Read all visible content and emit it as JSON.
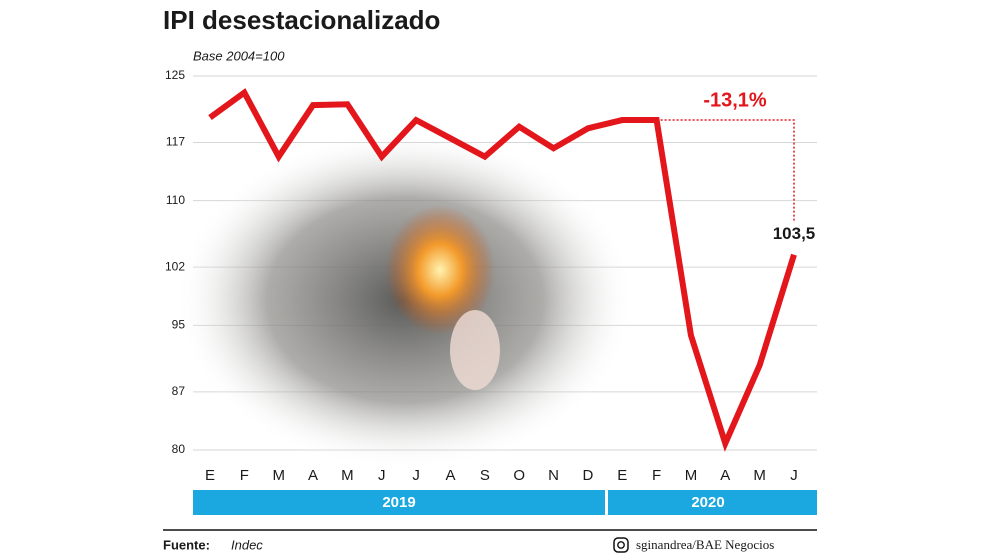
{
  "chart_data": {
    "type": "line",
    "title": "IPI desestacionalizado",
    "subtitle": "Base 2004=100",
    "categories": [
      "E",
      "F",
      "M",
      "A",
      "M",
      "J",
      "J",
      "A",
      "S",
      "O",
      "N",
      "D",
      "E",
      "F",
      "M",
      "A",
      "M",
      "J"
    ],
    "values": [
      120,
      123,
      115.3,
      121.5,
      121.6,
      115.3,
      119.7,
      117.5,
      115.3,
      118.9,
      116.3,
      118.7,
      119.7,
      119.7,
      93.8,
      80.8,
      90.2,
      103.5
    ],
    "value_labels": [
      null,
      null,
      null,
      null,
      null,
      null,
      null,
      null,
      null,
      null,
      null,
      null,
      null,
      null,
      null,
      null,
      null,
      "103,5"
    ],
    "color": "#e3161b",
    "ylim": [
      80,
      125
    ],
    "yticks": [
      80,
      87,
      95,
      102,
      110,
      117,
      125
    ],
    "grid": true,
    "years": [
      "2019",
      "2020"
    ],
    "annotation": "-13,1%",
    "source_label": "Fuente:",
    "source": "Indec",
    "credit": "sginandrea/BAE Negocios"
  }
}
